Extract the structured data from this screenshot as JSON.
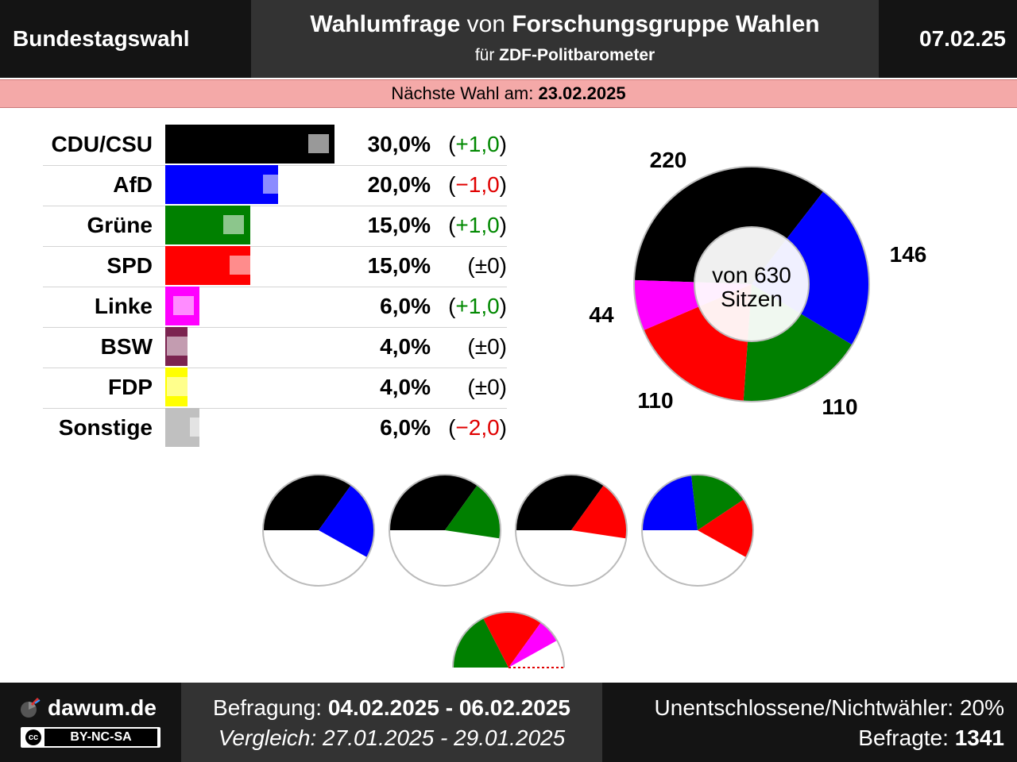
{
  "header": {
    "election": "Bundestagswahl",
    "title_part1": "Wahlumfrage",
    "title_part2": "von",
    "title_part3": "Forschungsgruppe Wahlen",
    "subtitle_prefix": "für",
    "subtitle_client": "ZDF-Politbarometer",
    "date": "07.02.25"
  },
  "next_election": {
    "label": "Nächste Wahl am:",
    "date": "23.02.2025"
  },
  "chart_data": [
    {
      "type": "bar",
      "categories": [
        "CDU/CSU",
        "AfD",
        "Grüne",
        "SPD",
        "Linke",
        "BSW",
        "FDP",
        "Sonstige"
      ],
      "values": [
        30.0,
        20.0,
        15.0,
        15.0,
        6.0,
        4.0,
        4.0,
        6.0
      ],
      "previous_values": [
        29.0,
        21.0,
        14.0,
        15.0,
        5.0,
        4.0,
        4.0,
        8.0
      ],
      "value_labels": [
        "30,0%",
        "20,0%",
        "15,0%",
        "15,0%",
        "6,0%",
        "4,0%",
        "4,0%",
        "6,0%"
      ],
      "change_labels": [
        "(+1,0)",
        "(−1,0)",
        "(+1,0)",
        "(±0)",
        "(+1,0)",
        "(±0)",
        "(±0)",
        "(−2,0)"
      ],
      "change_sign": [
        "pos",
        "neg",
        "pos",
        "zero",
        "pos",
        "zero",
        "zero",
        "neg"
      ],
      "colors": [
        "#000000",
        "#0000ff",
        "#008000",
        "#ff0000",
        "#ff00ff",
        "#7b2450",
        "#ffff00",
        "#c0c0c0"
      ],
      "xlim": [
        0,
        30
      ]
    },
    {
      "type": "pie",
      "categories": [
        "CDU/CSU",
        "AfD",
        "Grüne",
        "SPD",
        "Linke"
      ],
      "values": [
        220,
        146,
        110,
        110,
        44
      ],
      "value_labels": [
        "220",
        "146",
        "110",
        "110",
        "44"
      ],
      "colors": [
        "#000000",
        "#0000ff",
        "#008000",
        "#ff0000",
        "#ff00ff"
      ],
      "total_label_line1": "von 630",
      "total_label_line2": "Sitzen"
    },
    {
      "type": "pie",
      "subtype": "coalitions",
      "coalitions": [
        {
          "parties": [
            "CDU/CSU",
            "AfD"
          ],
          "seats": [
            220,
            146
          ],
          "colors": [
            "#000000",
            "#0000ff"
          ]
        },
        {
          "parties": [
            "CDU/CSU",
            "Grüne"
          ],
          "seats": [
            220,
            110
          ],
          "colors": [
            "#000000",
            "#008000"
          ]
        },
        {
          "parties": [
            "CDU/CSU",
            "SPD"
          ],
          "seats": [
            220,
            110
          ],
          "colors": [
            "#000000",
            "#ff0000"
          ]
        },
        {
          "parties": [
            "AfD",
            "Grüne",
            "SPD"
          ],
          "seats": [
            146,
            110,
            110
          ],
          "colors": [
            "#0000ff",
            "#008000",
            "#ff0000"
          ]
        },
        {
          "parties": [
            "Grüne",
            "SPD",
            "Linke"
          ],
          "seats": [
            110,
            110,
            44
          ],
          "colors": [
            "#008000",
            "#ff0000",
            "#ff00ff"
          ],
          "half": true
        }
      ],
      "total_seats": 630
    }
  ],
  "footer": {
    "brand": "dawum.de",
    "license_cc": "cc",
    "license": "BY-NC-SA",
    "survey_label": "Befragung:",
    "survey_period": "04.02.2025 - 06.02.2025",
    "compare_label": "Vergleich:",
    "compare_period": "27.01.2025 - 29.01.2025",
    "undecided": "Unentschlossene/Nichtwähler: 20%",
    "respondents_label": "Befragte:",
    "respondents": "1341"
  }
}
